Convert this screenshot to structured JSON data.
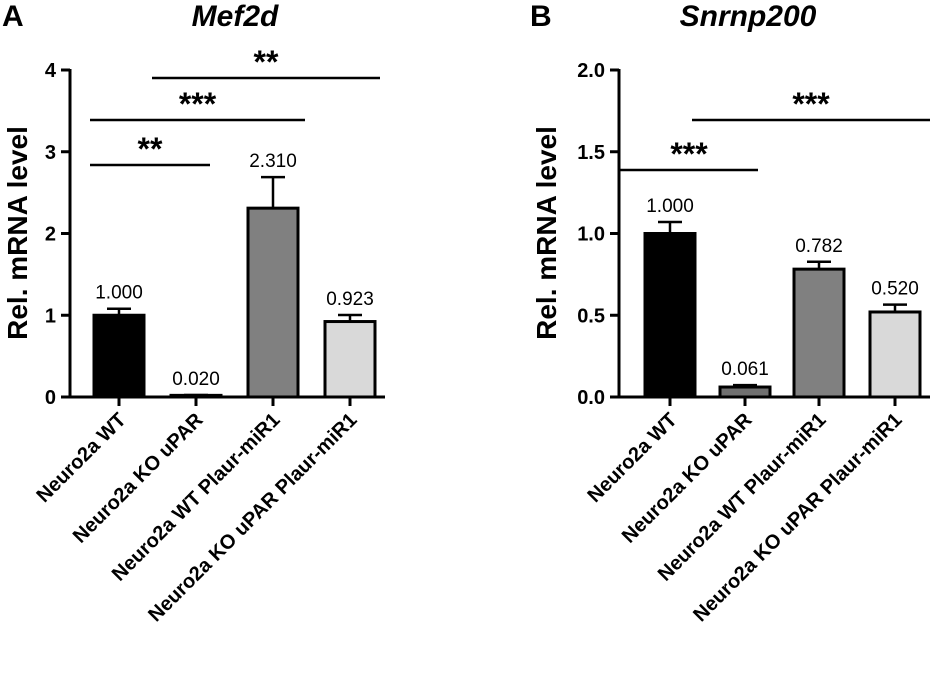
{
  "chart_data": [
    {
      "panel": "A",
      "type": "bar",
      "title": "Mef2d",
      "ylabel": "Rel. mRNA level",
      "xlabel": "",
      "ylim": [
        0,
        4
      ],
      "yticks": [
        0,
        1,
        2,
        3,
        4
      ],
      "ytick_labels": [
        "0",
        "1",
        "2",
        "3",
        "4"
      ],
      "categories": [
        "Neuro2a WT",
        "Neuro2a KO uPAR",
        "Neuro2a WT Plaur-miR1",
        "Neuro2a KO uPAR Plaur-miR1"
      ],
      "values": [
        1.0,
        0.02,
        2.31,
        0.923
      ],
      "value_labels": [
        "1.000",
        "0.020",
        "2.310",
        "0.923"
      ],
      "errors": [
        0.08,
        0.005,
        0.38,
        0.08
      ],
      "colors": [
        "#000000",
        "#2b2b2b",
        "#808080",
        "#d9d9d9"
      ],
      "significance": [
        {
          "from": 0,
          "to": 1,
          "label": "**"
        },
        {
          "from": 0,
          "to": 2,
          "label": "***"
        },
        {
          "from": 1,
          "to": 3,
          "label": "**"
        }
      ]
    },
    {
      "panel": "B",
      "type": "bar",
      "title": "Snrnp200",
      "ylabel": "Rel. mRNA level",
      "xlabel": "",
      "ylim": [
        0,
        2
      ],
      "yticks": [
        0,
        0.5,
        1,
        1.5,
        2
      ],
      "ytick_labels": [
        "0.0",
        "0.5",
        "1.0",
        "1.5",
        "2.0"
      ],
      "categories": [
        "Neuro2a WT",
        "Neuro2a KO uPAR",
        "Neuro2a WT Plaur-miR1",
        "Neuro2a KO uPAR Plaur-miR1"
      ],
      "values": [
        1.0,
        0.061,
        0.782,
        0.52
      ],
      "value_labels": [
        "1.000",
        "0.061",
        "0.782",
        "0.520"
      ],
      "errors": [
        0.07,
        0.012,
        0.045,
        0.045
      ],
      "colors": [
        "#000000",
        "#707070",
        "#808080",
        "#d9d9d9"
      ],
      "significance": [
        {
          "from": 0,
          "to": 1,
          "label": "***"
        },
        {
          "from": 1,
          "to": 3,
          "label": "***"
        }
      ]
    }
  ]
}
